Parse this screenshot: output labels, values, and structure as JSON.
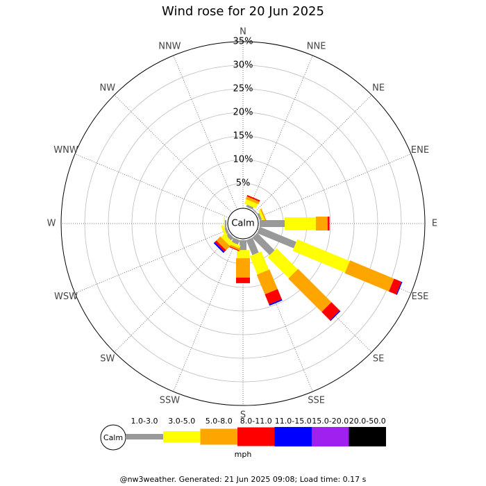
{
  "chart_data": {
    "type": "windrose",
    "title": "Wind rose for 20 Jun 2025",
    "directions": [
      "N",
      "NNE",
      "NE",
      "ENE",
      "E",
      "ESE",
      "SE",
      "SSE",
      "S",
      "SSW",
      "SW",
      "WSW",
      "W",
      "WNW",
      "NW",
      "NNW"
    ],
    "calm_label": "Calm",
    "unit": "mph",
    "rlim": [
      0,
      35
    ],
    "rticks": [
      {
        "value": 5,
        "label": "5%"
      },
      {
        "value": 10,
        "label": "10%"
      },
      {
        "value": 15,
        "label": "15%"
      },
      {
        "value": 20,
        "label": "20%"
      },
      {
        "value": 25,
        "label": "25%"
      },
      {
        "value": 30,
        "label": "30%"
      },
      {
        "value": 35,
        "label": "35%"
      }
    ],
    "series": [
      {
        "name": "1.0-3.0",
        "color": "#999999",
        "values": [
          0,
          0.5,
          0.2,
          0.5,
          5.3,
          8.4,
          5.2,
          3.4,
          2.1,
          1.0,
          0.8,
          0.5,
          0.3,
          0,
          0,
          0
        ]
      },
      {
        "name": "3.0-5.0",
        "color": "#ffff00",
        "values": [
          0,
          1.0,
          0,
          0.5,
          6.6,
          12.0,
          6.3,
          4.2,
          1.7,
          0.6,
          1.0,
          0.5,
          0.2,
          0,
          0,
          0
        ]
      },
      {
        "name": "5.0-8.0",
        "color": "#ffa500",
        "values": [
          0,
          0.6,
          0,
          0.3,
          2.5,
          10.1,
          10.0,
          4.5,
          4.1,
          0.4,
          1.2,
          0,
          0,
          0,
          0,
          0
        ]
      },
      {
        "name": "8.0-11.0",
        "color": "#ff0000",
        "values": [
          0,
          0.3,
          0,
          0,
          0.4,
          1.7,
          2.5,
          2.3,
          1.2,
          0.2,
          0.5,
          0,
          0,
          0,
          0,
          0
        ]
      },
      {
        "name": "11.0-15.0",
        "color": "#0000ff",
        "values": [
          0,
          0,
          0,
          0,
          0,
          0.2,
          0.2,
          0.3,
          0,
          0,
          0.3,
          0,
          0,
          0,
          0,
          0
        ]
      },
      {
        "name": "15.0-20.0",
        "color": "#a020f0",
        "values": [
          0,
          0,
          0,
          0,
          0,
          0,
          0,
          0,
          0,
          0,
          0,
          0,
          0,
          0,
          0,
          0
        ]
      },
      {
        "name": "20.0-50.0",
        "color": "#000000",
        "values": [
          0,
          0,
          0,
          0,
          0,
          0,
          0,
          0,
          0,
          0,
          0,
          0,
          0,
          0,
          0,
          0
        ]
      }
    ],
    "footer": "@nw3weather. Generated: 21 Jun 2025 09:08; Load time: 0.17 s"
  }
}
